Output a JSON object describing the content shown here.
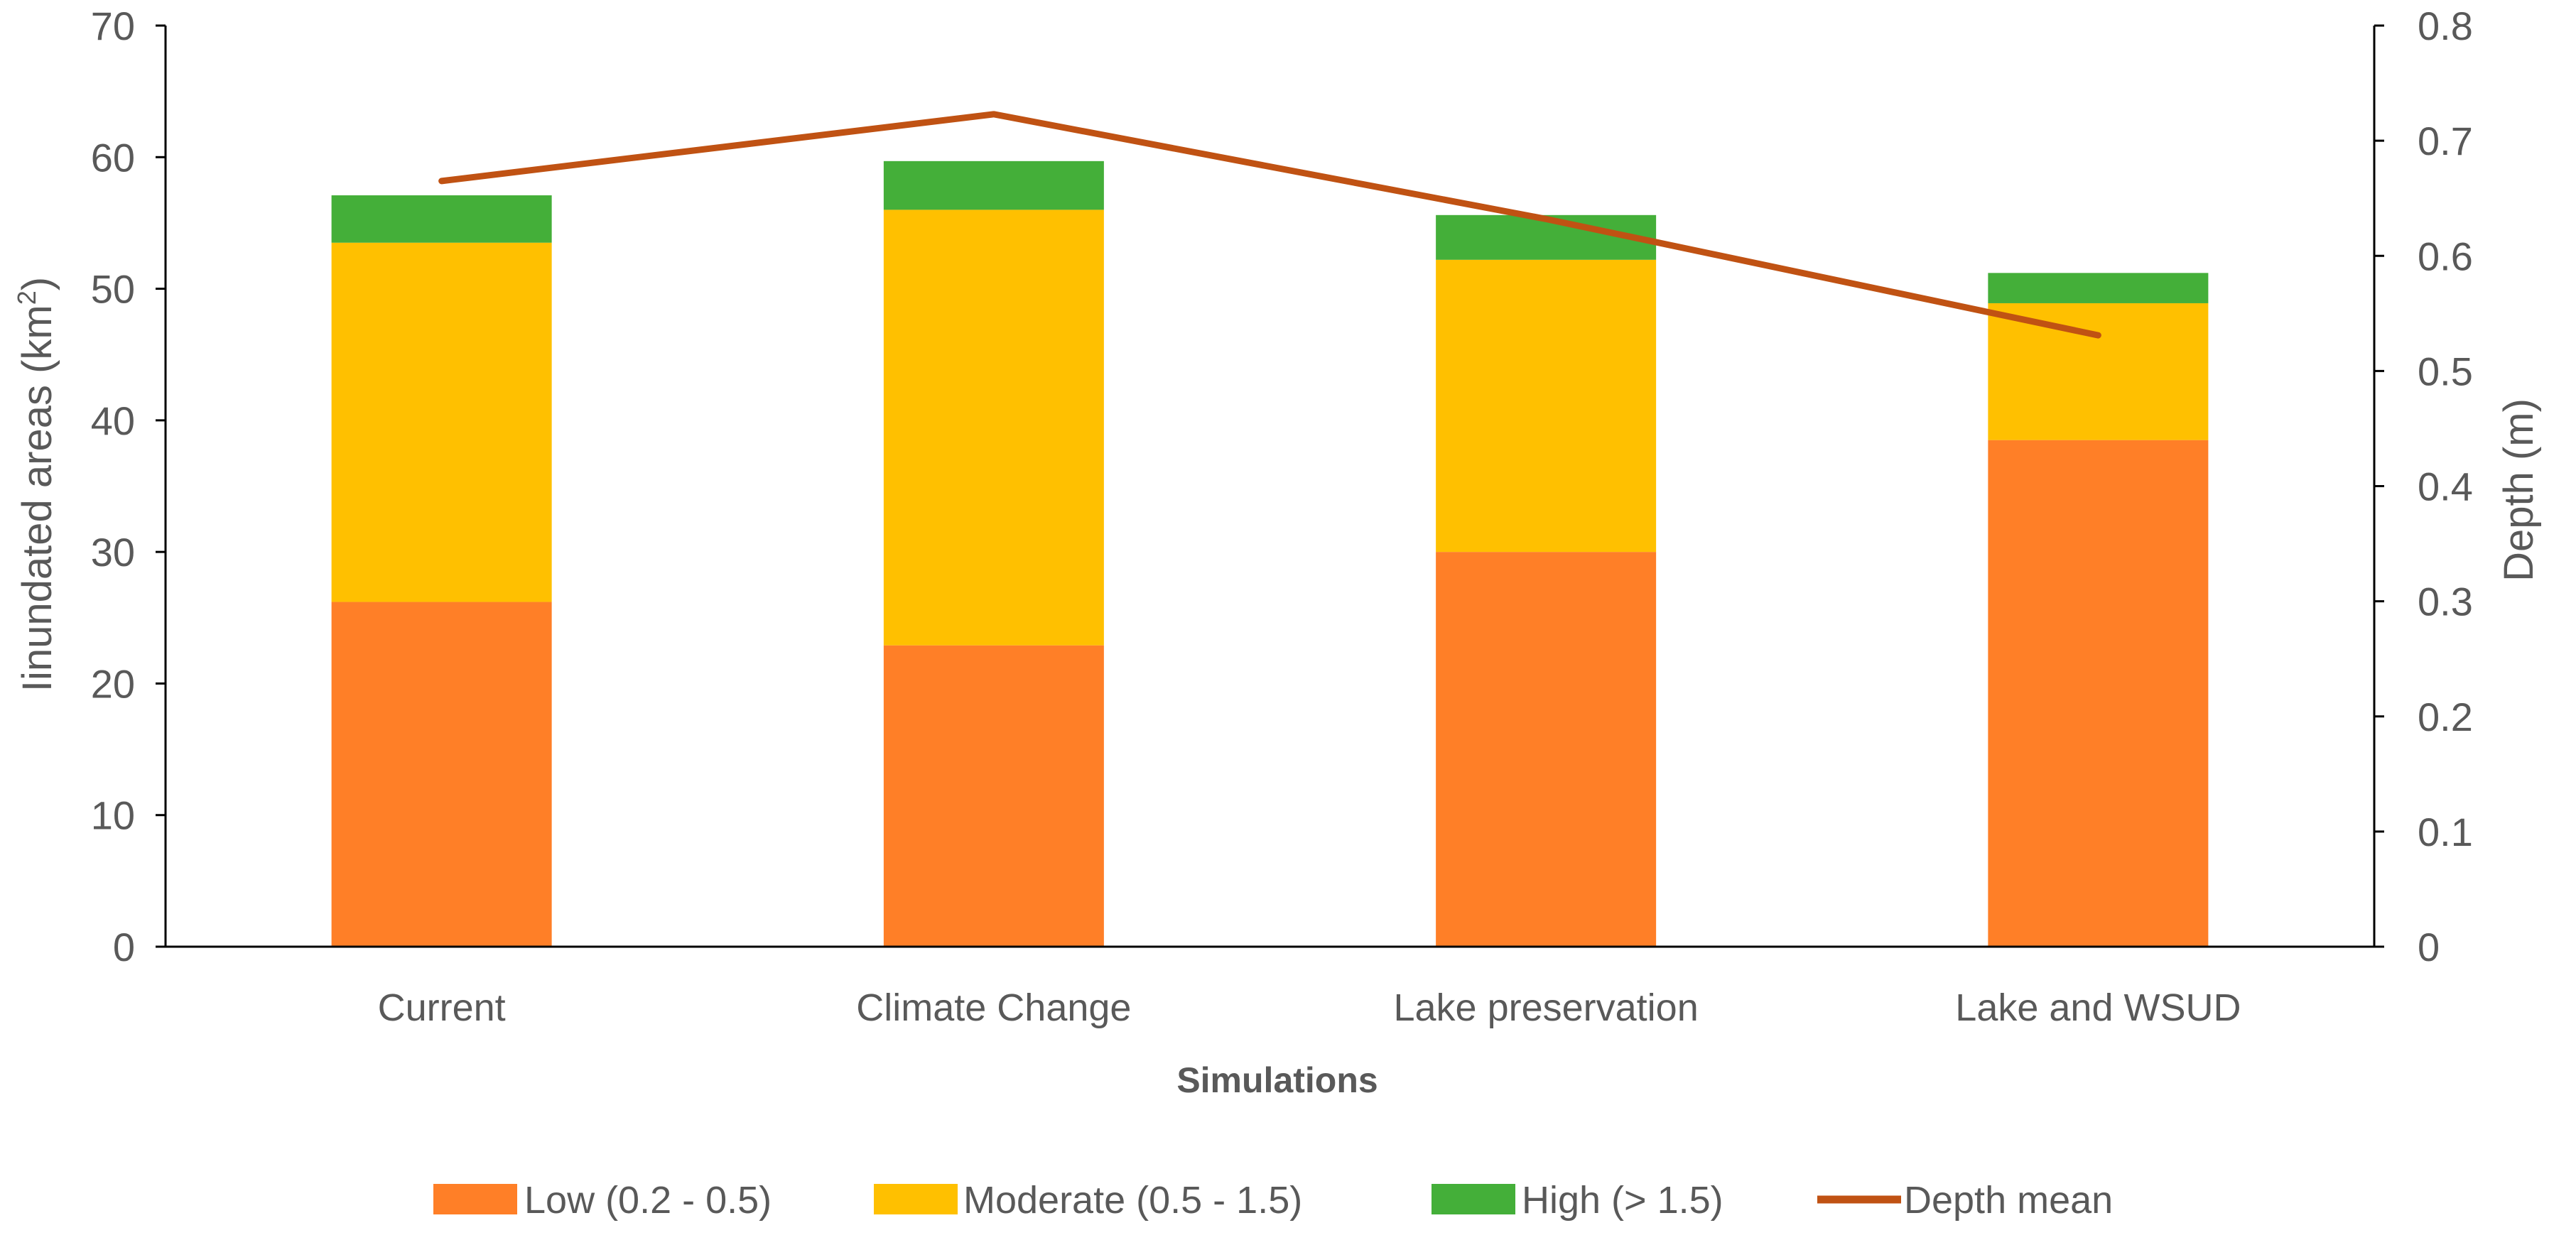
{
  "chart_data": {
    "type": "bar",
    "stacked": true,
    "categories": [
      "Current",
      "Climate Change",
      "Lake preservation",
      "Lake and WSUD"
    ],
    "series": [
      {
        "name": "Low (0.2 - 0.5)",
        "axis": "left",
        "color": "#FF7F27",
        "values": [
          26.2,
          22.9,
          30.0,
          38.5
        ]
      },
      {
        "name": "Moderate (0.5 - 1.5)",
        "axis": "left",
        "color": "#FFC000",
        "values": [
          27.3,
          33.1,
          22.2,
          10.4
        ]
      },
      {
        "name": "High (> 1.5)",
        "axis": "left",
        "color": "#44AF39",
        "values": [
          3.6,
          3.7,
          3.4,
          2.3
        ]
      }
    ],
    "line_series": {
      "name": "Depth mean",
      "axis": "right",
      "color": "#C05213",
      "type": "line",
      "values": [
        0.665,
        0.723,
        0.632,
        0.531
      ]
    },
    "xlabel": "Simulations",
    "ylabel": "Iinundated areas (km",
    "ylabel_superscript": "2",
    "ylabel_suffix": ")",
    "y2label": "Depth (m)",
    "ylim": [
      0,
      70
    ],
    "y2lim": [
      0,
      0.8
    ],
    "yticks": [
      "0",
      "10",
      "20",
      "30",
      "40",
      "50",
      "60",
      "70"
    ],
    "y2ticks": [
      "0",
      "0.1",
      "0.2",
      "0.3",
      "0.4",
      "0.5",
      "0.6",
      "0.7",
      "0.8"
    ],
    "grid": false,
    "legend_position": "bottom"
  }
}
